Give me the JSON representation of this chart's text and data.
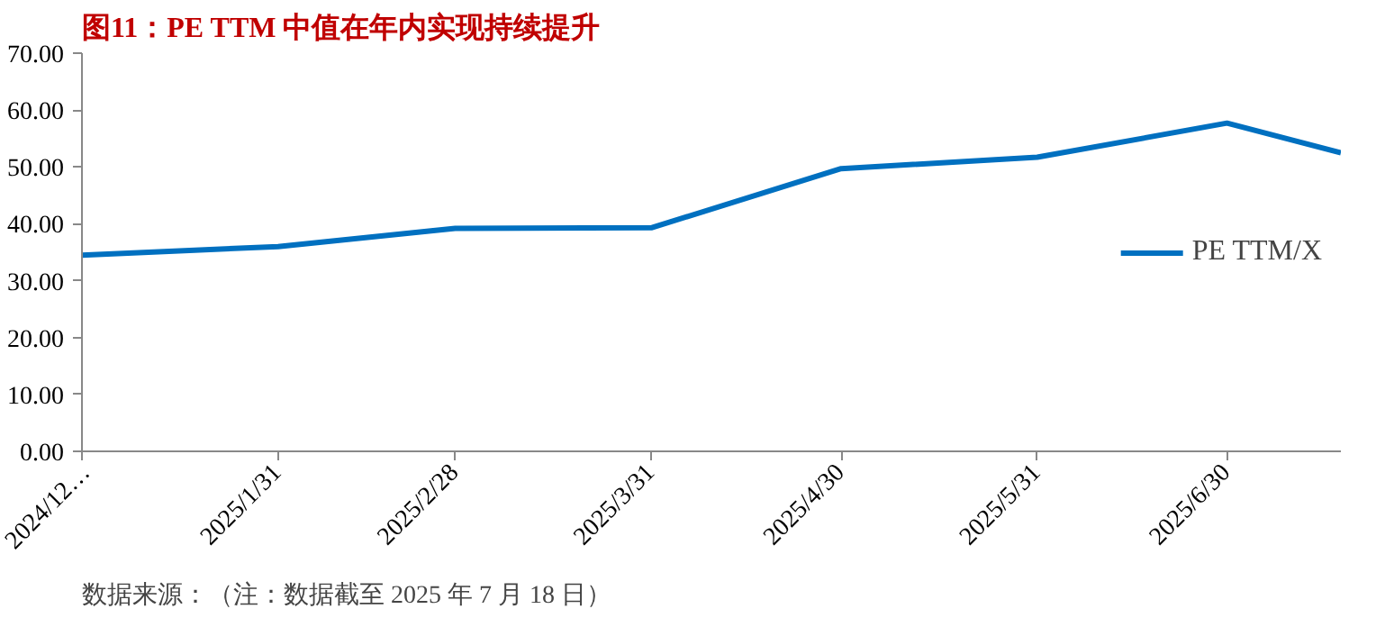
{
  "chart_data": {
    "type": "line",
    "title": "图11：PE TTM 中值在年内实现持续提升",
    "x": [
      "2024-12-31",
      "2025-01-31",
      "2025-02-28",
      "2025-03-31",
      "2025-04-30",
      "2025-05-31",
      "2025-06-30",
      "2025-07-18"
    ],
    "series": [
      {
        "name": "PE TTM/X",
        "color": "#0070c0",
        "values": [
          34.5,
          36.0,
          39.2,
          39.3,
          49.7,
          51.7,
          57.7,
          52.5
        ]
      }
    ],
    "xlim": [
      "2024-12-31",
      "2025-07-18"
    ],
    "xticks": [
      {
        "value": "2024-12-31",
        "label": "2024/12…"
      },
      {
        "value": "2025-01-31",
        "label": "2025/1/31"
      },
      {
        "value": "2025-02-28",
        "label": "2025/2/28"
      },
      {
        "value": "2025-03-31",
        "label": "2025/3/31"
      },
      {
        "value": "2025-04-30",
        "label": "2025/4/30"
      },
      {
        "value": "2025-05-31",
        "label": "2025/5/31"
      },
      {
        "value": "2025-06-30",
        "label": "2025/6/30"
      }
    ],
    "ylim": [
      0,
      70
    ],
    "yticks": [
      {
        "value": 0,
        "label": "0.00"
      },
      {
        "value": 10,
        "label": "10.00"
      },
      {
        "value": 20,
        "label": "20.00"
      },
      {
        "value": 30,
        "label": "30.00"
      },
      {
        "value": 40,
        "label": "40.00"
      },
      {
        "value": 50,
        "label": "50.00"
      },
      {
        "value": 60,
        "label": "60.00"
      },
      {
        "value": 70,
        "label": "70.00"
      }
    ],
    "grid": false,
    "legend": "right",
    "marker": "none",
    "line_style": "solid",
    "annotations": [
      "数据来源：（注：数据截至 2025 年 7 月 18 日）"
    ]
  }
}
